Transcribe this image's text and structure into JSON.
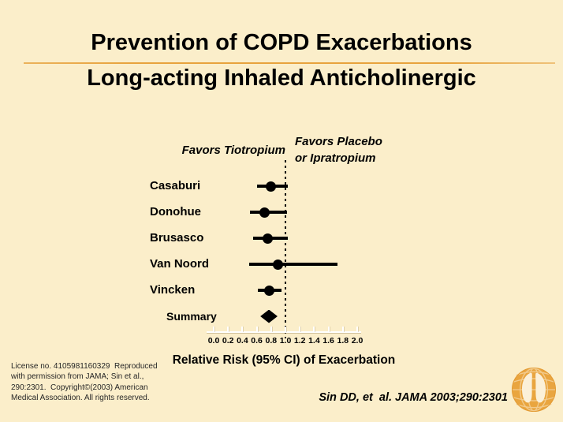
{
  "header": {
    "title_line1": "Prevention of COPD Exacerbations",
    "title_line2": "Long-acting Inhaled Anticholinergic"
  },
  "chart_data": {
    "type": "forest",
    "title": "Prevention of COPD Exacerbations",
    "subtitle": "Long-acting Inhaled Anticholinergic",
    "left_header": "Favors Tiotropium",
    "right_header": "Favors Placebo\nor Ipratropium",
    "xlabel": "Relative Risk (95% CI) of Exacerbation",
    "axis": {
      "min": 0.0,
      "max": 2.0,
      "step": 0.2,
      "tick_labels": [
        "0.0",
        "0.2",
        "0.4",
        "0.6",
        "0.8",
        "1.0",
        "1.2",
        "1.4",
        "1.6",
        "1.8",
        "2.0"
      ],
      "reference_line": 1.0,
      "grid": false
    },
    "studies": [
      {
        "name": "Casaburi",
        "rr": 0.8,
        "ci_low": 0.6,
        "ci_high": 1.03,
        "marker": "circle"
      },
      {
        "name": "Donohue",
        "rr": 0.71,
        "ci_low": 0.5,
        "ci_high": 1.02,
        "marker": "circle"
      },
      {
        "name": "Brusasco",
        "rr": 0.75,
        "ci_low": 0.55,
        "ci_high": 1.03,
        "marker": "circle"
      },
      {
        "name": "Van Noord",
        "rr": 0.9,
        "ci_low": 0.49,
        "ci_high": 1.73,
        "marker": "circle"
      },
      {
        "name": "Vincken",
        "rr": 0.77,
        "ci_low": 0.61,
        "ci_high": 0.94,
        "marker": "circle"
      },
      {
        "name": "Summary",
        "rr": 0.77,
        "ci_low": 0.65,
        "ci_high": 0.89,
        "marker": "diamond"
      }
    ]
  },
  "footer": {
    "license": "License no. 4105981160329  Reproduced\nwith permission from JAMA; Sin et al.,\n290:2301.  Copyright©(2003) American\nMedical Association. All rights reserved.",
    "citation": "Sin DD, et  al. JAMA 2003;290:2301"
  },
  "logo": {
    "name": "globe-lungs-emblem"
  },
  "colors": {
    "background": "#FBEECA",
    "accent_gold": "#E8A33D",
    "text": "#000000",
    "axis": "#FFFFFF"
  }
}
